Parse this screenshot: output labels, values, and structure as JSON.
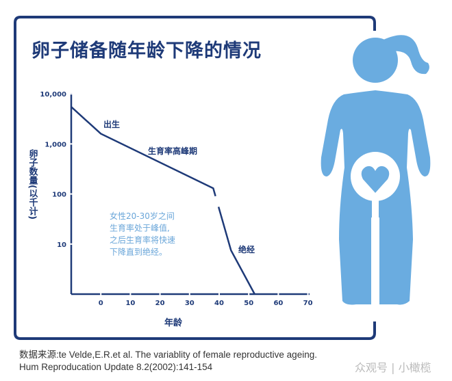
{
  "title": "卵子储备随年龄下降的情况",
  "colors": {
    "frame": "#1e3a78",
    "line": "#1e3a78",
    "note": "#6aa6d9",
    "figure": "#6aace0"
  },
  "chart_data": {
    "type": "line",
    "xlabel": "年龄",
    "ylabel": "卵子数量(以千计)",
    "x_ticks": [
      "0",
      "10",
      "20",
      "30",
      "40",
      "50",
      "60",
      "70"
    ],
    "y_ticks": [
      "10,000",
      "1,000",
      "100",
      "10"
    ],
    "y_scale": "log",
    "xlim": [
      -10,
      70
    ],
    "ylim": [
      1,
      10000
    ],
    "grid": false,
    "series": [
      {
        "x": [
          -10,
          0,
          38,
          44,
          52
        ],
        "y": [
          5500,
          1600,
          130,
          7.5,
          1
        ]
      }
    ],
    "annotations": {
      "birth": "出生",
      "peak": "生育率高峰期",
      "menopause": "绝经",
      "note": [
        "女性20-30岁之间",
        "生育率处于峰值,",
        "之后生育率将快速",
        "下降直到绝经。"
      ]
    }
  },
  "icons": {
    "figure": "woman-heart-icon"
  },
  "source": {
    "line1": "数据来源:te Velde,E.R.et al. The variablity of female reproductive ageing.",
    "line2": "Hum Reproducation Update 8.2(2002):141-154"
  },
  "watermark": "众观号 | 小橄榄"
}
